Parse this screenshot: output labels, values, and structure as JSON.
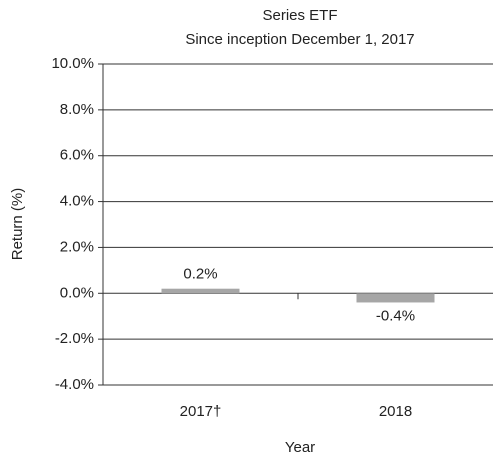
{
  "chart_data": {
    "type": "bar",
    "title": "Series ETF",
    "subtitle": "Since inception December 1, 2017",
    "x_label": "Year",
    "y_label": "Return (%)",
    "categories": [
      "2017†",
      "2018"
    ],
    "values": [
      0.2,
      -0.4
    ],
    "value_labels": [
      "0.2%",
      "-0.4%"
    ],
    "color": "#a6a6a6",
    "ylim": [
      -4,
      10
    ],
    "yticks": [
      {
        "value": -4,
        "label": "-4.0%"
      },
      {
        "value": -2,
        "label": "-2.0%"
      },
      {
        "value": 0,
        "label": "0.0%"
      },
      {
        "value": 2,
        "label": "2.0%"
      },
      {
        "value": 4,
        "label": "4.0%"
      },
      {
        "value": 6,
        "label": "6.0%"
      },
      {
        "value": 8,
        "label": "8.0%"
      },
      {
        "value": 10,
        "label": "10.0%"
      }
    ],
    "grid": true
  }
}
